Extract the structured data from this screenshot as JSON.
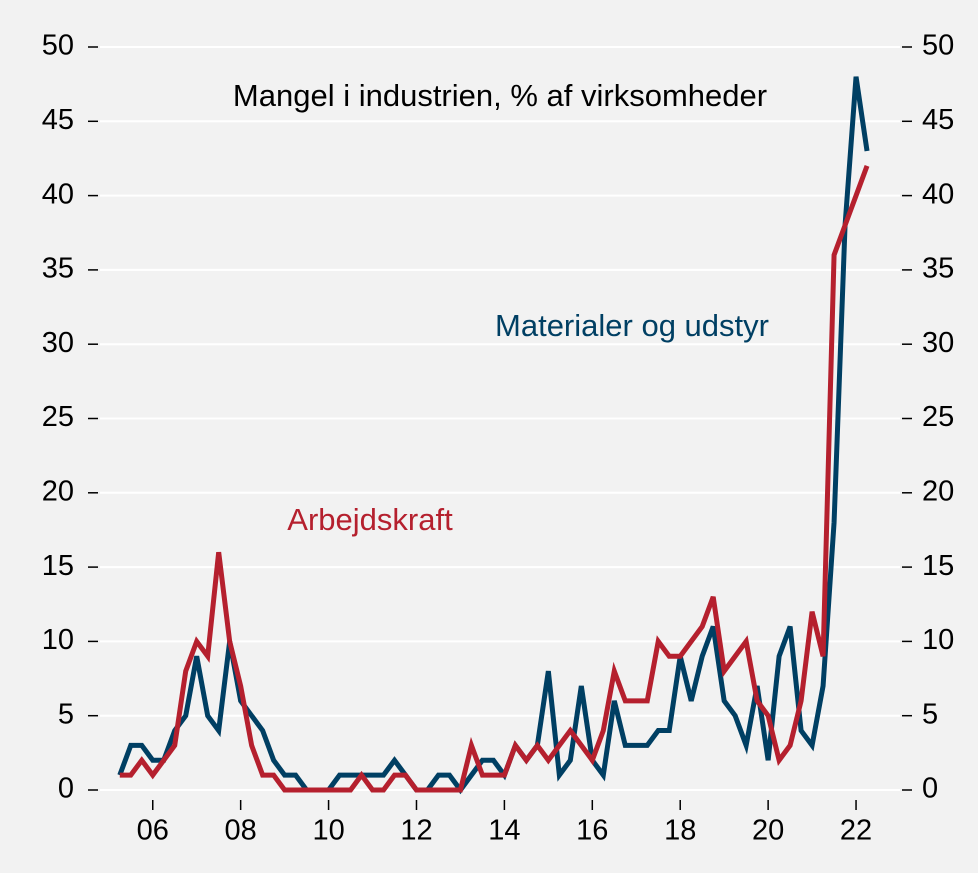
{
  "chart_data": {
    "type": "line",
    "title": "Mangel i industrien, % af virksomheder",
    "x": [
      2005.25,
      2005.5,
      2005.75,
      2006,
      2006.25,
      2006.5,
      2006.75,
      2007,
      2007.25,
      2007.5,
      2007.75,
      2008,
      2008.25,
      2008.5,
      2008.75,
      2009,
      2009.25,
      2009.5,
      2009.75,
      2010,
      2010.25,
      2010.5,
      2010.75,
      2011,
      2011.25,
      2011.5,
      2011.75,
      2012,
      2012.25,
      2012.5,
      2012.75,
      2013,
      2013.25,
      2013.5,
      2013.75,
      2014,
      2014.25,
      2014.5,
      2014.75,
      2015,
      2015.25,
      2015.5,
      2015.75,
      2016,
      2016.25,
      2016.5,
      2016.75,
      2017,
      2017.25,
      2017.5,
      2017.75,
      2018,
      2018.25,
      2018.5,
      2018.75,
      2019,
      2019.25,
      2019.5,
      2019.75,
      2020,
      2020.25,
      2020.5,
      2020.75,
      2021,
      2021.25,
      2021.5,
      2021.75,
      2022,
      2022.25
    ],
    "series": [
      {
        "name": "Materialer og udstyr",
        "color": "#003f63",
        "values": [
          1,
          3,
          3,
          2,
          2,
          4,
          5,
          9,
          5,
          4,
          10,
          6,
          5,
          4,
          2,
          1,
          1,
          0,
          0,
          0,
          1,
          1,
          1,
          1,
          1,
          2,
          1,
          0,
          0,
          1,
          1,
          0,
          1,
          2,
          2,
          1,
          3,
          2,
          3,
          8,
          1,
          2,
          7,
          2,
          1,
          6,
          3,
          3,
          3,
          4,
          4,
          9,
          6,
          9,
          11,
          6,
          5,
          3,
          7,
          2,
          9,
          11,
          4,
          3,
          7,
          18,
          38,
          48,
          43
        ]
      },
      {
        "name": "Arbejdskraft",
        "color": "#b5202e",
        "values": [
          1,
          1,
          2,
          1,
          2,
          3,
          8,
          10,
          9,
          16,
          10,
          7,
          3,
          1,
          1,
          0,
          0,
          0,
          0,
          0,
          0,
          0,
          1,
          0,
          0,
          1,
          1,
          0,
          0,
          0,
          0,
          0,
          3,
          1,
          1,
          1,
          3,
          2,
          3,
          2,
          3,
          4,
          3,
          2,
          4,
          8,
          6,
          6,
          6,
          10,
          9,
          9,
          10,
          11,
          13,
          8,
          9,
          10,
          6,
          5,
          2,
          3,
          6,
          12,
          9,
          36,
          38,
          40,
          42
        ]
      }
    ],
    "xlim": [
      2004.8,
      2023.0
    ],
    "xticks": [
      {
        "value": 2006,
        "label": "06"
      },
      {
        "value": 2008,
        "label": "08"
      },
      {
        "value": 2010,
        "label": "10"
      },
      {
        "value": 2012,
        "label": "12"
      },
      {
        "value": 2014,
        "label": "14"
      },
      {
        "value": 2016,
        "label": "16"
      },
      {
        "value": 2018,
        "label": "18"
      },
      {
        "value": 2020,
        "label": "20"
      },
      {
        "value": 2022,
        "label": "22"
      }
    ],
    "ylim": [
      0,
      50
    ],
    "yticks": [
      0,
      5,
      10,
      15,
      20,
      25,
      30,
      35,
      40,
      45,
      50
    ],
    "y2lim": [
      0,
      50
    ],
    "y2ticks": [
      0,
      5,
      10,
      15,
      20,
      25,
      30,
      35,
      40,
      45,
      50
    ],
    "grid": true
  }
}
